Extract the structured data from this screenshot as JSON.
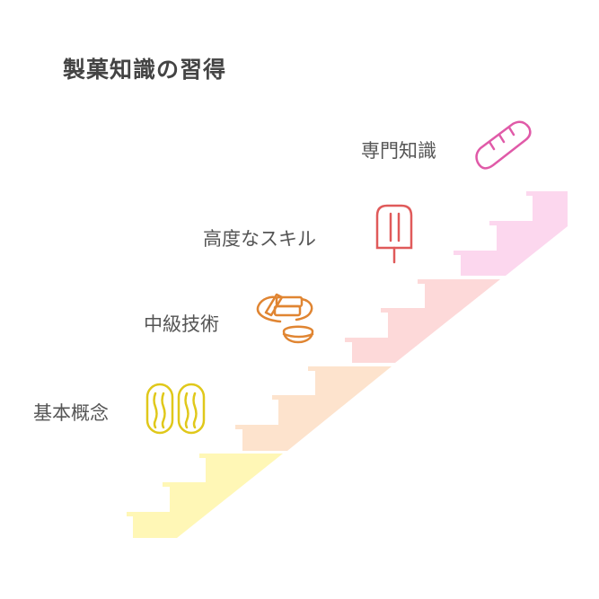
{
  "title": "製菓知識の習得",
  "levels": [
    {
      "label": "基本概念",
      "icon": "eclair-pair-icon",
      "color": "#fff7b6",
      "icon_color": "#e0c81a"
    },
    {
      "label": "中級技術",
      "icon": "cake-and-bowl-icon",
      "color": "#fde3cd",
      "icon_color": "#e08532"
    },
    {
      "label": "高度なスキル",
      "icon": "popsicle-icon",
      "color": "#fdd9d9",
      "icon_color": "#e05a5a"
    },
    {
      "label": "専門知識",
      "icon": "baguette-icon",
      "color": "#fcd7ee",
      "icon_color": "#e05aa8"
    }
  ]
}
